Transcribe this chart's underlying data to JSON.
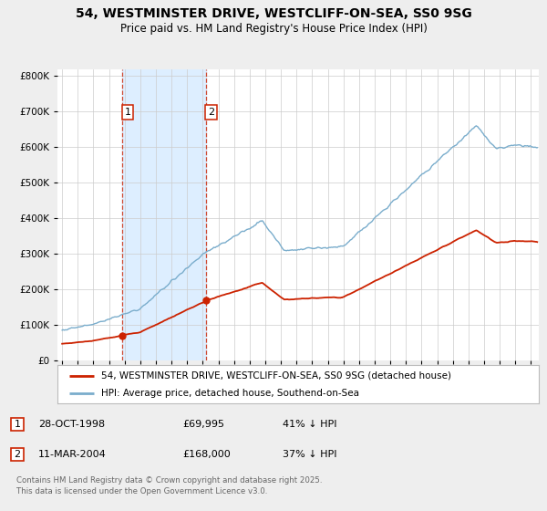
{
  "title": "54, WESTMINSTER DRIVE, WESTCLIFF-ON-SEA, SS0 9SG",
  "subtitle": "Price paid vs. HM Land Registry's House Price Index (HPI)",
  "legend_entry1": "54, WESTMINSTER DRIVE, WESTCLIFF-ON-SEA, SS0 9SG (detached house)",
  "legend_entry2": "HPI: Average price, detached house, Southend-on-Sea",
  "purchase1_date": "28-OCT-1998",
  "purchase1_price": "£69,995",
  "purchase1_hpi": "41% ↓ HPI",
  "purchase2_date": "11-MAR-2004",
  "purchase2_price": "£168,000",
  "purchase2_hpi": "37% ↓ HPI",
  "footnote": "Contains HM Land Registry data © Crown copyright and database right 2025.\nThis data is licensed under the Open Government Licence v3.0.",
  "ylim": [
    0,
    820000
  ],
  "yticks": [
    0,
    100000,
    200000,
    300000,
    400000,
    500000,
    600000,
    700000,
    800000
  ],
  "xlim_left": 1994.7,
  "xlim_right": 2025.5,
  "bg_color": "#eeeeee",
  "plot_bg_color": "#ffffff",
  "red_color": "#cc2200",
  "blue_color": "#7aadcc",
  "shading_color": "#ddeeff",
  "purchase1_x": 1998.83,
  "purchase1_y": 69995,
  "purchase2_x": 2004.19,
  "purchase2_y": 168000
}
